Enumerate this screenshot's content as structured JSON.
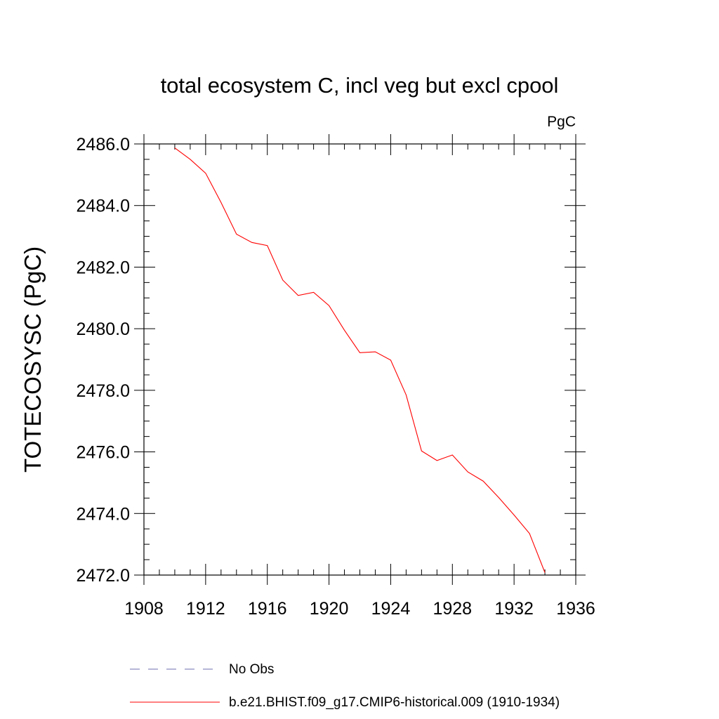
{
  "chart_data": {
    "type": "line",
    "title": "total ecosystem C, incl veg but excl cpool",
    "units_label": "PgC",
    "xlabel": "",
    "ylabel": "TOTECOSYSC  (PgC)",
    "xlim": [
      1908,
      1936
    ],
    "ylim": [
      2472.0,
      2486.0
    ],
    "x_ticks": [
      "1908",
      "1912",
      "1916",
      "1920",
      "1924",
      "1928",
      "1932",
      "1936"
    ],
    "y_ticks": [
      "2486.0",
      "2484.0",
      "2482.0",
      "2480.0",
      "2478.0",
      "2476.0",
      "2474.0",
      "2472.0"
    ],
    "grid": false,
    "legend_position": "bottom",
    "series": [
      {
        "name": "b.e21.BHIST.f09_g17.CMIP6-historical.009 (1910-1934)",
        "color": "#ff0000",
        "style": "solid",
        "x": [
          1910,
          1911,
          1912,
          1913,
          1914,
          1915,
          1916,
          1917,
          1918,
          1919,
          1920,
          1921,
          1922,
          1923,
          1924,
          1925,
          1926,
          1927,
          1928,
          1929,
          1930,
          1931,
          1932,
          1933,
          1934
        ],
        "y": [
          2485.87,
          2485.5,
          2485.05,
          2484.1,
          2483.07,
          2482.8,
          2482.7,
          2481.58,
          2481.08,
          2481.18,
          2480.75,
          2479.95,
          2479.22,
          2479.25,
          2478.98,
          2477.85,
          2476.03,
          2475.72,
          2475.9,
          2475.35,
          2475.05,
          2474.52,
          2473.95,
          2473.35,
          2472.08
        ]
      }
    ],
    "legend": [
      {
        "label": "No Obs",
        "color": "#6f6fb0",
        "style": "dashed"
      },
      {
        "label": "b.e21.BHIST.f09_g17.CMIP6-historical.009 (1910-1934)",
        "color": "#ff0000",
        "style": "solid"
      }
    ]
  }
}
